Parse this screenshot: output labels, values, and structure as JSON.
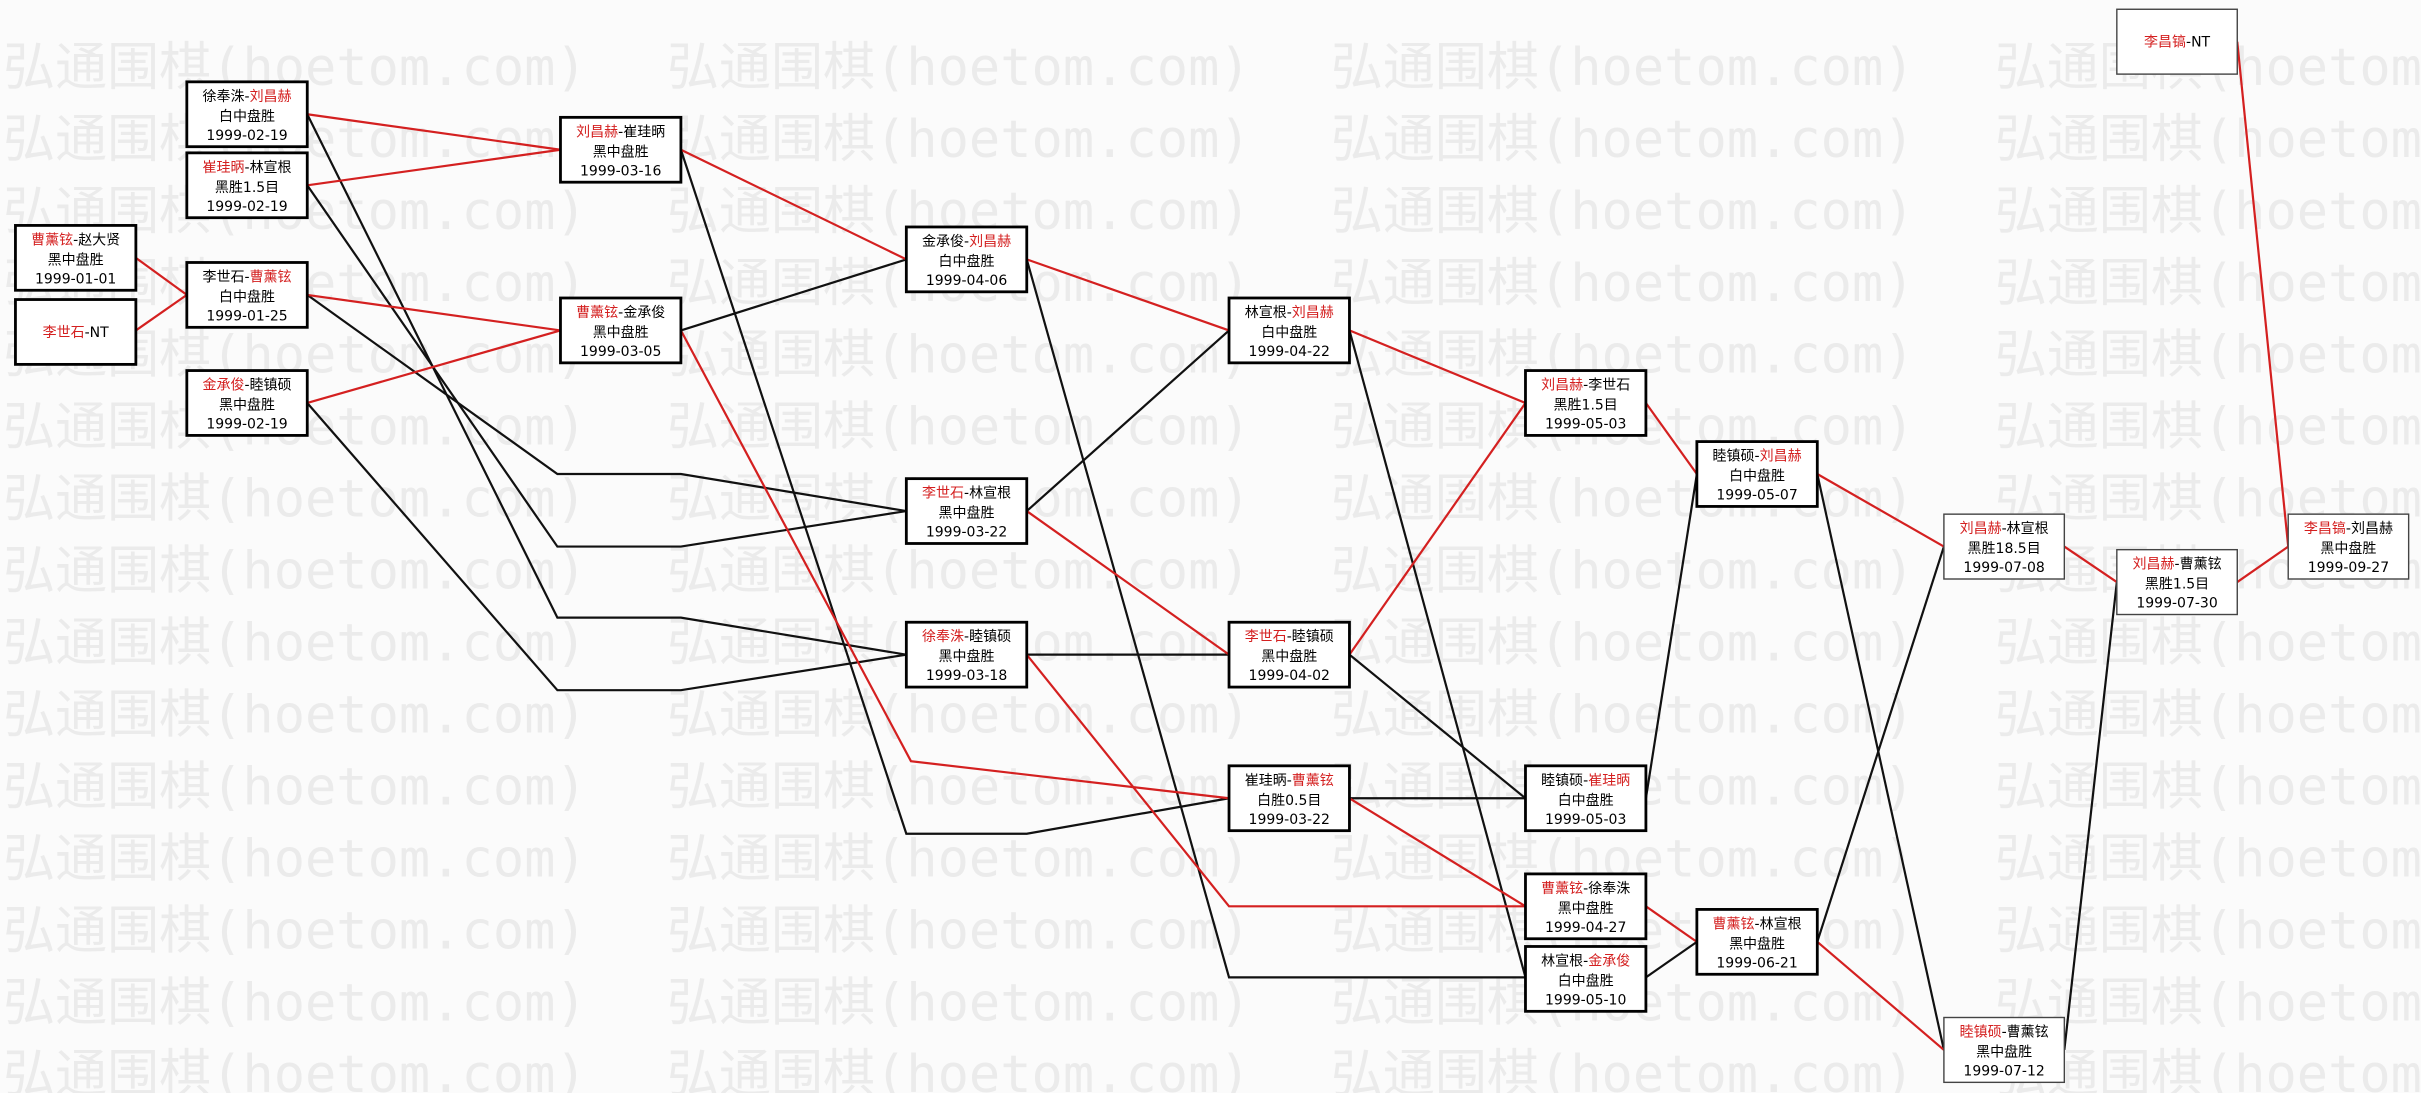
{
  "watermark": "弘通围棋(hoetom.com)",
  "separator": "-",
  "nodes": [
    {
      "players": [
        "曹薰铉",
        "赵大贤"
      ],
      "winner": 0,
      "result": "黑中盘胜",
      "date": "1999-01-01"
    },
    {
      "players": [
        "李世石",
        "NT"
      ],
      "winner": 0
    },
    {
      "players": [
        "徐奉洙",
        "刘昌赫"
      ],
      "winner": 1,
      "result": "白中盘胜",
      "date": "1999-02-19"
    },
    {
      "players": [
        "崔珪昞",
        "林宣根"
      ],
      "winner": 0,
      "result": "黑胜1.5目",
      "date": "1999-02-19"
    },
    {
      "players": [
        "李世石",
        "曹薰铉"
      ],
      "winner": 1,
      "result": "白中盘胜",
      "date": "1999-01-25"
    },
    {
      "players": [
        "金承俊",
        "睦镇硕"
      ],
      "winner": 0,
      "result": "黑中盘胜",
      "date": "1999-02-19"
    },
    {
      "players": [
        "刘昌赫",
        "崔珪昞"
      ],
      "winner": 0,
      "result": "黑中盘胜",
      "date": "1999-03-16"
    },
    {
      "players": [
        "曹薰铉",
        "金承俊"
      ],
      "winner": 0,
      "result": "黑中盘胜",
      "date": "1999-03-05"
    },
    {
      "players": [
        "金承俊",
        "刘昌赫"
      ],
      "winner": 1,
      "result": "白中盘胜",
      "date": "1999-04-06"
    },
    {
      "players": [
        "李世石",
        "林宣根"
      ],
      "winner": 0,
      "result": "黑中盘胜",
      "date": "1999-03-22"
    },
    {
      "players": [
        "徐奉洙",
        "睦镇硕"
      ],
      "winner": 0,
      "result": "黑中盘胜",
      "date": "1999-03-18"
    },
    {
      "players": [
        "林宣根",
        "刘昌赫"
      ],
      "winner": 1,
      "result": "白中盘胜",
      "date": "1999-04-22"
    },
    {
      "players": [
        "李世石",
        "睦镇硕"
      ],
      "winner": 0,
      "result": "黑中盘胜",
      "date": "1999-04-02"
    },
    {
      "players": [
        "崔珪昞",
        "曹薰铉"
      ],
      "winner": 1,
      "result": "白胜0.5目",
      "date": "1999-03-22"
    },
    {
      "players": [
        "刘昌赫",
        "李世石"
      ],
      "winner": 0,
      "result": "黑胜1.5目",
      "date": "1999-05-03"
    },
    {
      "players": [
        "睦镇硕",
        "崔珪昞"
      ],
      "winner": 1,
      "result": "白中盘胜",
      "date": "1999-05-03"
    },
    {
      "players": [
        "曹薰铉",
        "徐奉洙"
      ],
      "winner": 0,
      "result": "黑中盘胜",
      "date": "1999-04-27"
    },
    {
      "players": [
        "林宣根",
        "金承俊"
      ],
      "winner": 1,
      "result": "白中盘胜",
      "date": "1999-05-10"
    },
    {
      "players": [
        "睦镇硕",
        "刘昌赫"
      ],
      "winner": 1,
      "result": "白中盘胜",
      "date": "1999-05-07"
    },
    {
      "players": [
        "曹薰铉",
        "林宣根"
      ],
      "winner": 0,
      "result": "黑中盘胜",
      "date": "1999-06-21"
    },
    {
      "players": [
        "刘昌赫",
        "林宣根"
      ],
      "winner": 0,
      "result": "黑胜18.5目",
      "date": "1999-07-08"
    },
    {
      "players": [
        "睦镇硕",
        "曹薰铉"
      ],
      "winner": 0,
      "result": "黑中盘胜",
      "date": "1999-07-12"
    },
    {
      "players": [
        "刘昌赫",
        "曹薰铉"
      ],
      "winner": 0,
      "result": "黑胜1.5目",
      "date": "1999-07-30"
    },
    {
      "players": [
        "李昌镐",
        "NT"
      ],
      "winner": 0
    },
    {
      "players": [
        "李昌镐",
        "刘昌赫"
      ],
      "winner": 0,
      "result": "黑中盘胜",
      "date": "1999-09-27"
    }
  ]
}
